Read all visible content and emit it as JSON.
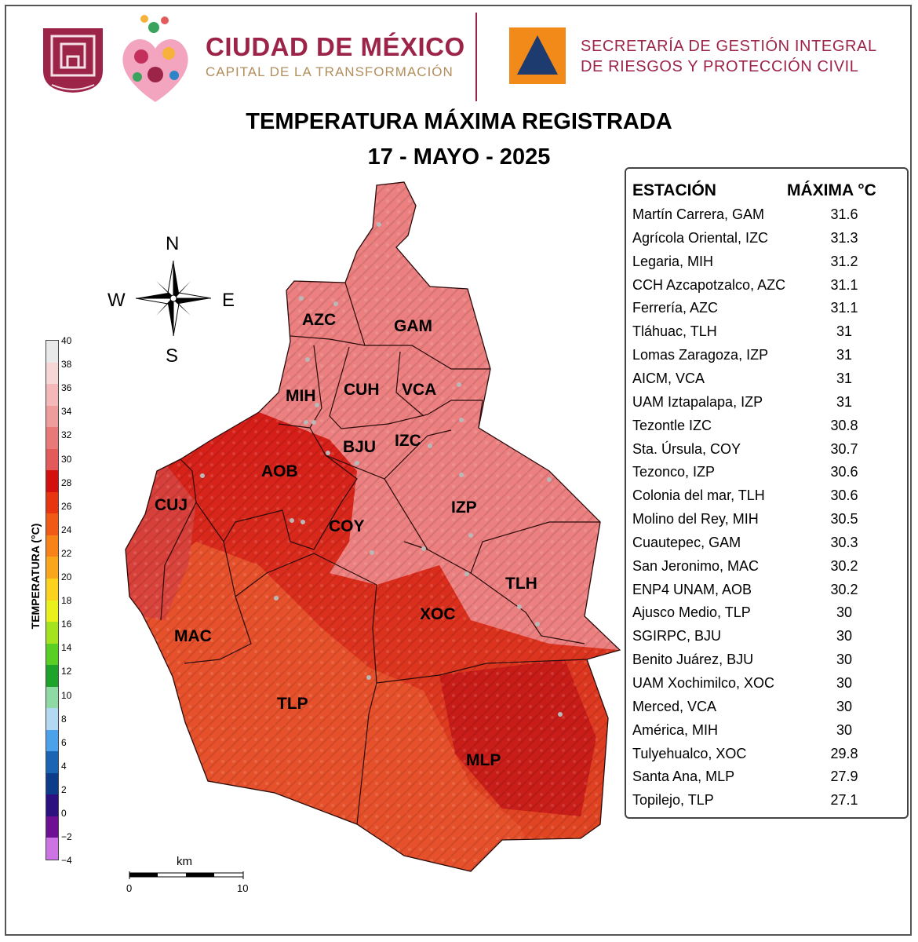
{
  "header": {
    "cdmx_title": "CIUDAD DE MÉXICO",
    "cdmx_subtitle": "CAPITAL DE LA TRANSFORMACIÓN",
    "sgirpc_line1": "SECRETARÍA DE GESTIÓN INTEGRAL",
    "sgirpc_line2": "DE RIESGOS Y PROTECCIÓN CIVIL"
  },
  "title": {
    "line1": "TEMPERATURA MÁXIMA REGISTRADA",
    "line2": "17 - MAYO - 2025"
  },
  "table": {
    "col_station": "ESTACIÓN",
    "col_max": "MÁXIMA °C",
    "rows": [
      {
        "station": "Martín Carrera, GAM",
        "max": "31.6"
      },
      {
        "station": "Agrícola Oriental, IZC",
        "max": "31.3"
      },
      {
        "station": "Legaria, MIH",
        "max": "31.2"
      },
      {
        "station": "CCH Azcapotzalco, AZC",
        "max": "31.1"
      },
      {
        "station": "Ferrería, AZC",
        "max": "31.1"
      },
      {
        "station": "Tláhuac, TLH",
        "max": "31"
      },
      {
        "station": "Lomas Zaragoza, IZP",
        "max": "31"
      },
      {
        "station": "AICM, VCA",
        "max": "31"
      },
      {
        "station": "UAM Iztapalapa, IZP",
        "max": "31"
      },
      {
        "station": "Tezontle IZC",
        "max": "30.8"
      },
      {
        "station": "Sta. Úrsula, COY",
        "max": "30.7"
      },
      {
        "station": "Tezonco, IZP",
        "max": "30.6"
      },
      {
        "station": "Colonia del mar, TLH",
        "max": "30.6"
      },
      {
        "station": "Molino del Rey, MIH",
        "max": "30.5"
      },
      {
        "station": "Cuautepec, GAM",
        "max": "30.3"
      },
      {
        "station": "San Jeronimo, MAC",
        "max": "30.2"
      },
      {
        "station": "ENP4 UNAM,  AOB",
        "max": "30.2"
      },
      {
        "station": "Ajusco Medio, TLP",
        "max": "30"
      },
      {
        "station": "SGIRPC, BJU",
        "max": "30"
      },
      {
        "station": "Benito Juárez, BJU",
        "max": "30"
      },
      {
        "station": "UAM Xochimilco, XOC",
        "max": "30"
      },
      {
        "station": "Merced, VCA",
        "max": "30"
      },
      {
        "station": "América, MIH",
        "max": "30"
      },
      {
        "station": "Tulyehualco, XOC",
        "max": "29.8"
      },
      {
        "station": "Santa Ana, MLP",
        "max": "27.9"
      },
      {
        "station": "Topilejo, TLP",
        "max": "27.1"
      }
    ]
  },
  "colorbar": {
    "label": "TEMPERATURA (°C)",
    "ticks": [
      "40",
      "38",
      "36",
      "34",
      "32",
      "30",
      "28",
      "26",
      "24",
      "22",
      "20",
      "18",
      "16",
      "14",
      "12",
      "10",
      "8",
      "6",
      "4",
      "2",
      "0",
      "−2",
      "−4"
    ],
    "colors": [
      "#e9e9e9",
      "#f6d6d6",
      "#f4b8b8",
      "#ee9c9c",
      "#e97878",
      "#e35a5a",
      "#d40f0f",
      "#e8350f",
      "#f05a14",
      "#f78217",
      "#f9a61a",
      "#fbd21c",
      "#eaf01c",
      "#a4e41e",
      "#58cf22",
      "#1ea32a",
      "#8ed9a4",
      "#b2d8f3",
      "#4ba2ea",
      "#1a64b4",
      "#0d3d8a",
      "#2c1280",
      "#6d1094",
      "#cc74e3"
    ],
    "colors_note": "top to bottom"
  },
  "compass": {
    "n": "N",
    "s": "S",
    "e": "E",
    "w": "W"
  },
  "scale": {
    "unit": "km",
    "start": "0",
    "end": "10"
  },
  "alcaldias": [
    "AZC",
    "GAM",
    "MIH",
    "CUH",
    "VCA",
    "BJU",
    "IZC",
    "AOB",
    "CUJ",
    "COY",
    "IZP",
    "TLH",
    "XOC",
    "MAC",
    "TLP",
    "MLP"
  ],
  "map_colors": {
    "warm": "#ef8d8d",
    "hot": "#d9241e",
    "orange": "#e4572e",
    "boundary": "#2a0a0a"
  }
}
